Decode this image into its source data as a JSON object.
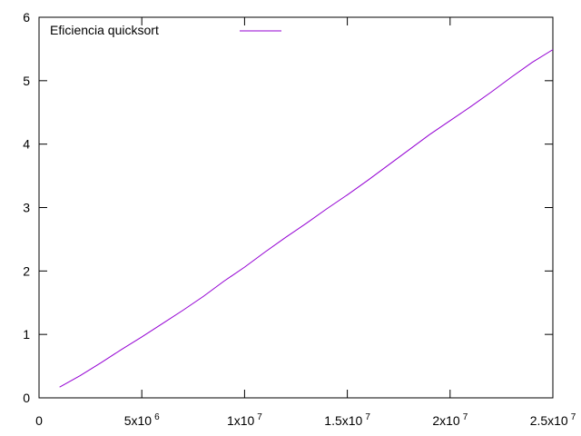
{
  "chart_data": {
    "type": "line",
    "title": "",
    "xlabel": "",
    "ylabel": "",
    "xlim": [
      0,
      25000000
    ],
    "ylim": [
      0,
      6
    ],
    "grid": false,
    "legend_position": "top-left",
    "x_ticks": [
      {
        "value": 0,
        "mantissa": "0",
        "exponent": ""
      },
      {
        "value": 5000000,
        "mantissa": "5x10",
        "exponent": "6"
      },
      {
        "value": 10000000,
        "mantissa": "1x10",
        "exponent": "7"
      },
      {
        "value": 15000000,
        "mantissa": "1.5x10",
        "exponent": "7"
      },
      {
        "value": 20000000,
        "mantissa": "2x10",
        "exponent": "7"
      },
      {
        "value": 25000000,
        "mantissa": "2.5x10",
        "exponent": "7"
      }
    ],
    "y_ticks": [
      {
        "value": 0,
        "label": "0"
      },
      {
        "value": 1,
        "label": "1"
      },
      {
        "value": 2,
        "label": "2"
      },
      {
        "value": 3,
        "label": "3"
      },
      {
        "value": 4,
        "label": "4"
      },
      {
        "value": 5,
        "label": "5"
      },
      {
        "value": 6,
        "label": "6"
      }
    ],
    "series": [
      {
        "name": "Eficiencia quicksort",
        "color": "#9400d3",
        "x": [
          1000000,
          2000000,
          3000000,
          4000000,
          5000000,
          6000000,
          7000000,
          8000000,
          9000000,
          10000000,
          11000000,
          12000000,
          13000000,
          14000000,
          15000000,
          16000000,
          17000000,
          18000000,
          19000000,
          20000000,
          21000000,
          22000000,
          23000000,
          24000000,
          25000000
        ],
        "y": [
          0.17,
          0.35,
          0.55,
          0.76,
          0.96,
          1.17,
          1.38,
          1.6,
          1.84,
          2.06,
          2.3,
          2.53,
          2.75,
          2.98,
          3.2,
          3.43,
          3.67,
          3.91,
          4.15,
          4.37,
          4.59,
          4.82,
          5.06,
          5.29,
          5.49
        ]
      }
    ]
  }
}
